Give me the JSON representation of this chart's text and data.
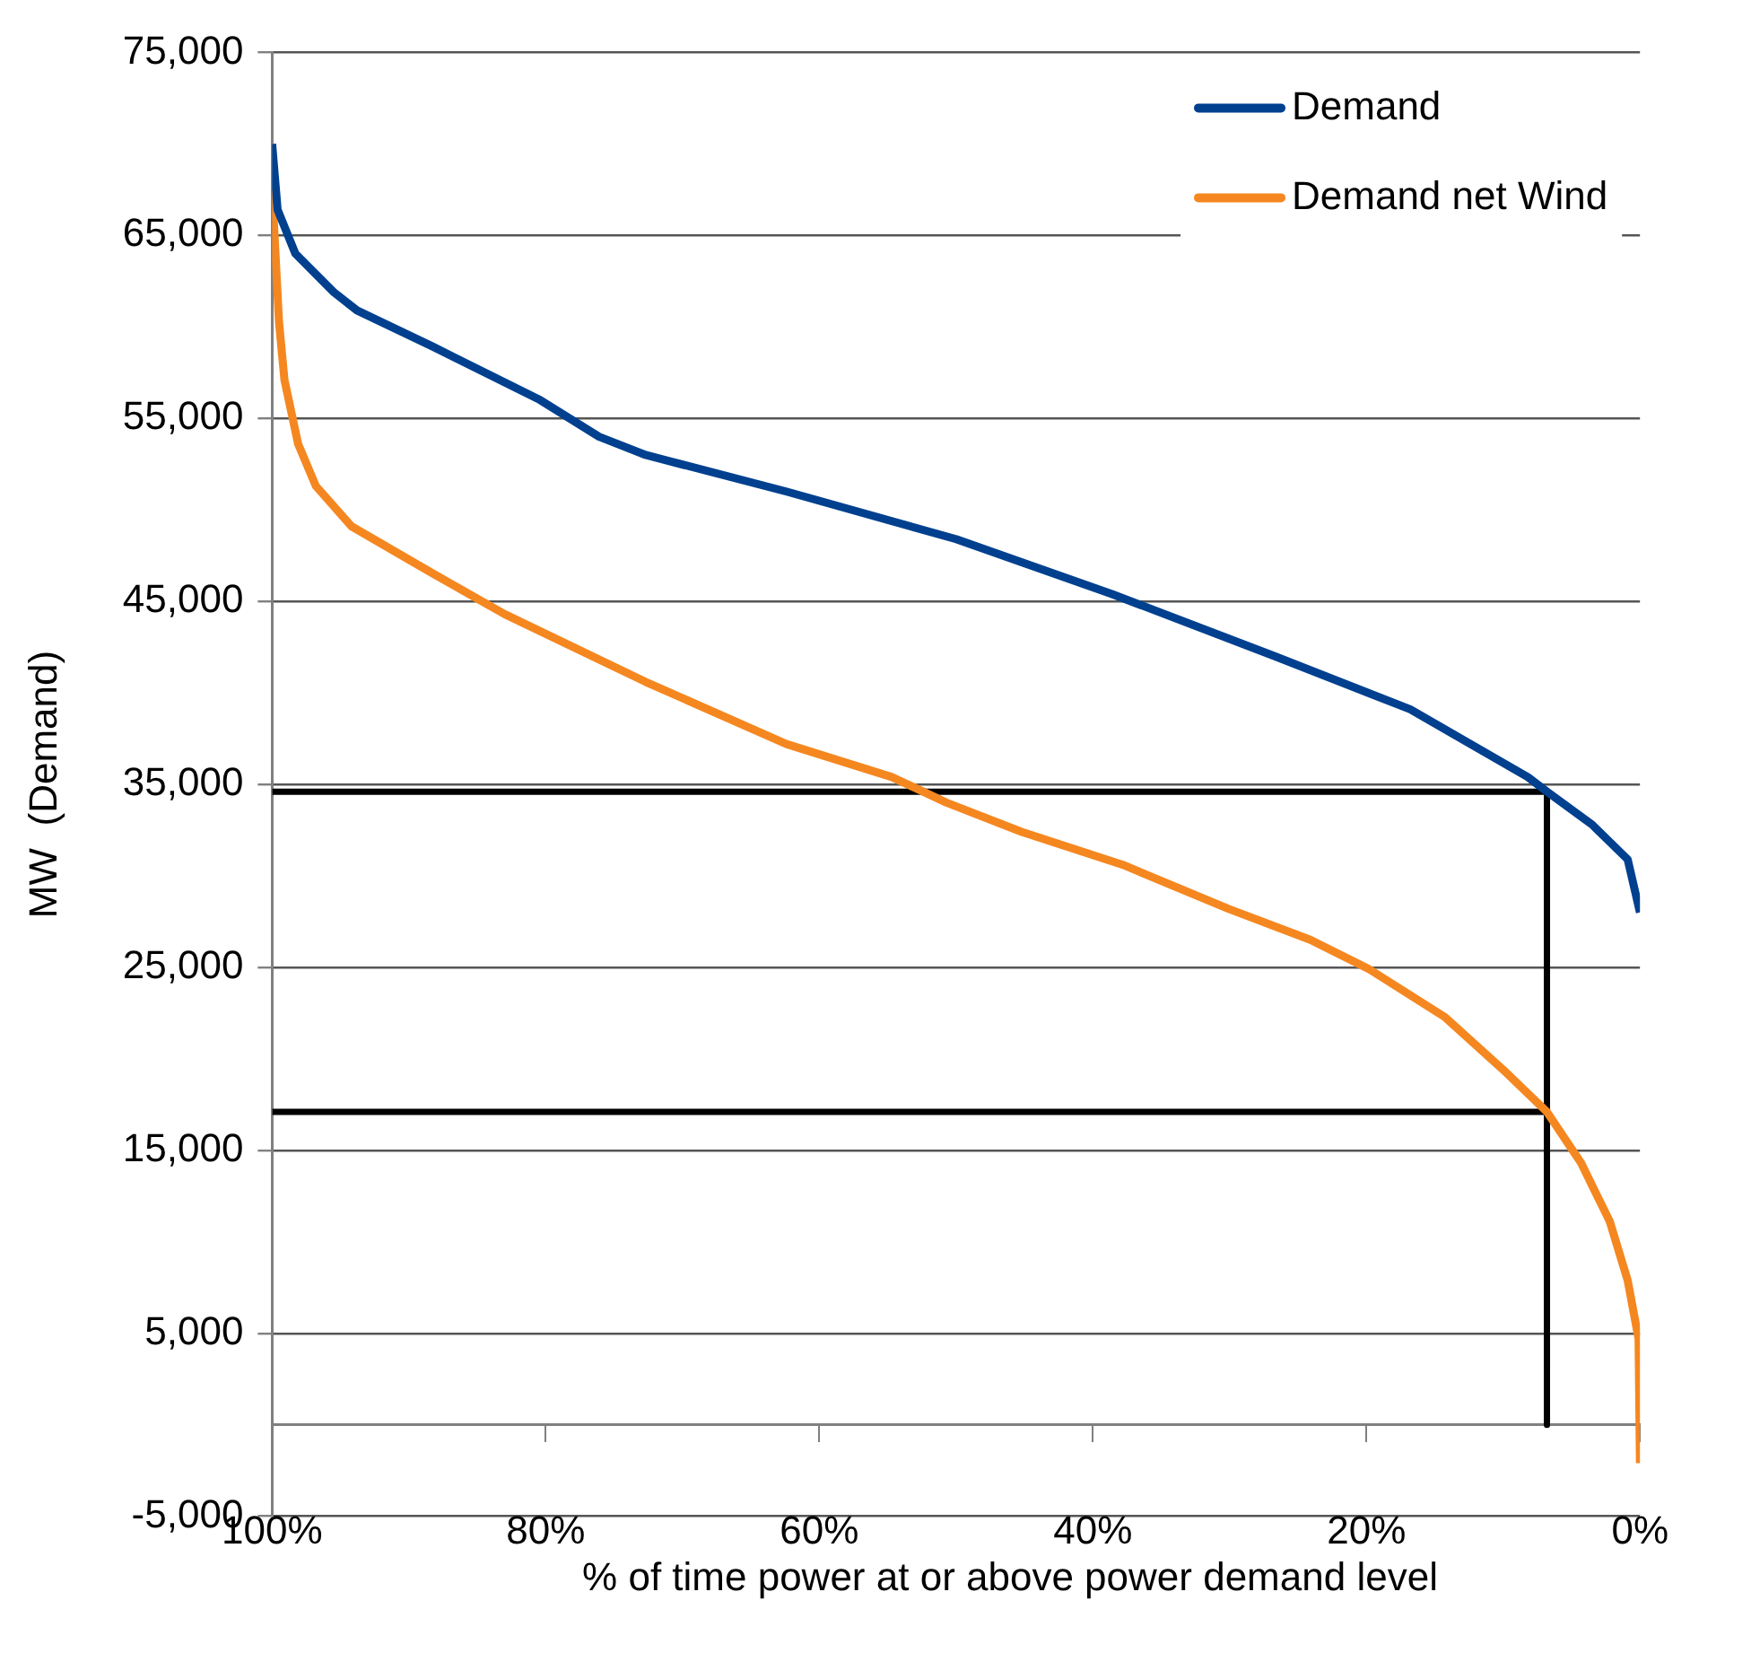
{
  "chart_data": {
    "type": "line",
    "xlabel": "% of time power at or above power demand level",
    "ylabel": "MW  (Demand)",
    "xlim": [
      100,
      0
    ],
    "xticks": [
      {
        "value": 100,
        "label": "100%"
      },
      {
        "value": 80,
        "label": "80%"
      },
      {
        "value": 60,
        "label": "60%"
      },
      {
        "value": 40,
        "label": "40%"
      },
      {
        "value": 20,
        "label": "20%"
      },
      {
        "value": 0,
        "label": "0%"
      }
    ],
    "ylim": [
      -5000,
      75000
    ],
    "yticks": [
      {
        "value": -5000,
        "label": "-5,000"
      },
      {
        "value": 5000,
        "label": "5,000"
      },
      {
        "value": 15000,
        "label": "15,000"
      },
      {
        "value": 25000,
        "label": "25,000"
      },
      {
        "value": 35000,
        "label": "35,000"
      },
      {
        "value": 45000,
        "label": "45,000"
      },
      {
        "value": 55000,
        "label": "55,000"
      },
      {
        "value": 65000,
        "label": "65,000"
      },
      {
        "value": 75000,
        "label": "75,000"
      }
    ],
    "grid": "y",
    "legend": "top right",
    "marker": "none",
    "line_style": "solid",
    "series": [
      {
        "name": "Demand",
        "color": "#00408f",
        "x": [
          100,
          99.6,
          98.3,
          95.5,
          93.8,
          88.2,
          80.4,
          76.1,
          72.7,
          62.4,
          50,
          38.6,
          26.7,
          16.8,
          8.2,
          6.8,
          3.5,
          0.9,
          0
        ],
        "values": [
          70000,
          66400,
          64000,
          61900,
          60900,
          58900,
          56000,
          54000,
          53000,
          51000,
          48400,
          45400,
          42000,
          39100,
          35400,
          34600,
          32800,
          30900,
          28000
        ]
      },
      {
        "name": "Demand net Wind",
        "color": "#f58720",
        "x": [
          100,
          99.5,
          99.1,
          98.1,
          96.8,
          94.2,
          88.2,
          83,
          72.7,
          62.4,
          54.7,
          50.7,
          45.2,
          37.8,
          30.1,
          24.1,
          19.8,
          14.3,
          10,
          6.8,
          4.3,
          2.2,
          0.9,
          0.1,
          0
        ],
        "values": [
          67500,
          60300,
          57100,
          53600,
          51300,
          49100,
          46500,
          44300,
          40600,
          37200,
          35400,
          34000,
          32400,
          30600,
          28200,
          26500,
          24900,
          22300,
          19400,
          17100,
          14300,
          11100,
          7900,
          4700,
          -2100
        ]
      },
      {
        "type": "line",
        "color": "#000000",
        "x": [
          100,
          6.8,
          6.8
        ],
        "values": [
          34600,
          34600,
          0
        ]
      },
      {
        "type": "line",
        "color": "#000000",
        "x": [
          100,
          6.8
        ],
        "values": [
          17100,
          17100
        ]
      }
    ]
  }
}
